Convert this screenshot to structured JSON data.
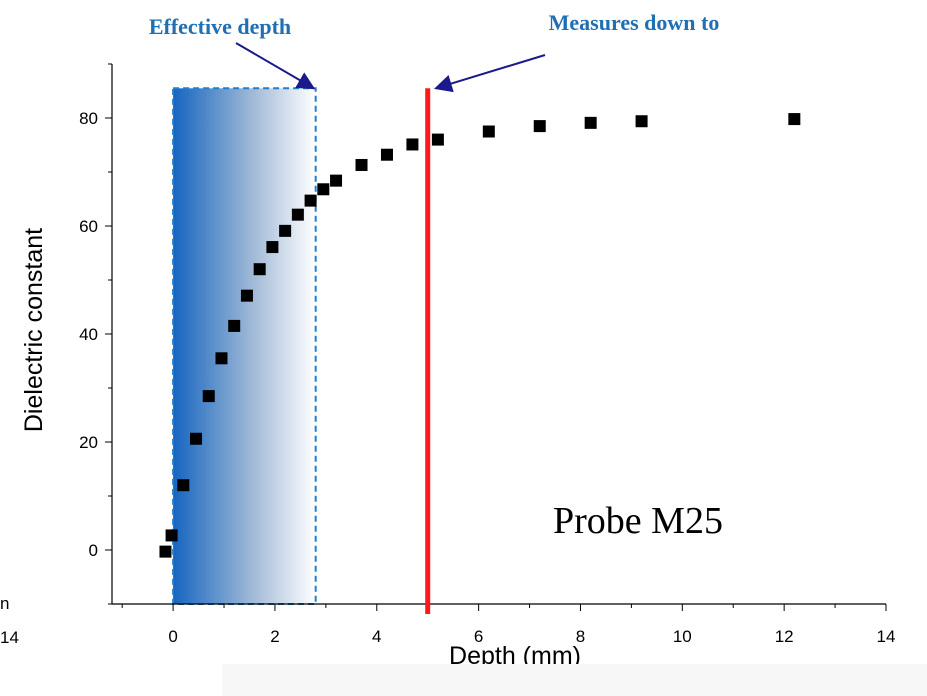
{
  "chart_data": {
    "type": "scatter",
    "xlabel": "Depth (mm)",
    "ylabel": "Dielectric constant",
    "xlim": [
      -1.2,
      14
    ],
    "ylim": [
      -10,
      90
    ],
    "xticks": [
      0,
      2,
      4,
      6,
      8,
      10,
      12,
      14
    ],
    "yticks": [
      0,
      20,
      40,
      60,
      80
    ],
    "series": [
      {
        "marker": "square",
        "color": "#000000",
        "x": [
          -0.15,
          -0.03,
          0.2,
          0.45,
          0.7,
          0.95,
          1.2,
          1.45,
          1.7,
          1.95,
          2.2,
          2.45,
          2.7,
          2.95,
          3.2,
          3.7,
          4.2,
          4.7,
          5.2,
          6.2,
          7.2,
          8.2,
          9.2,
          12.2
        ],
        "y": [
          -0.3,
          2.7,
          12.0,
          20.6,
          28.5,
          35.5,
          41.5,
          47.1,
          52.0,
          56.1,
          59.1,
          62.1,
          64.7,
          66.8,
          68.4,
          71.3,
          73.2,
          75.1,
          76.0,
          77.5,
          78.5,
          79.1,
          79.4,
          79.8
        ]
      }
    ],
    "annotations": {
      "effective_depth_label": "Effective depth",
      "measures_down_to_label": "Measures down to",
      "probe_label": "Probe M25",
      "effective_depth_range_mm": [
        0,
        2.8
      ],
      "measures_down_to_mm": 5.0
    }
  },
  "edge_fragments": {
    "left_tick": "14",
    "left_char": "n"
  },
  "colors": {
    "annotation_text": "#1f6fb4",
    "arrow": "#1a1a8c",
    "gradient_start": "#1565c0",
    "gradient_end": "#ffffff",
    "dashed_box": "#1f7fd0",
    "measure_line": "#ff1a1a",
    "marker": "#000000"
  }
}
